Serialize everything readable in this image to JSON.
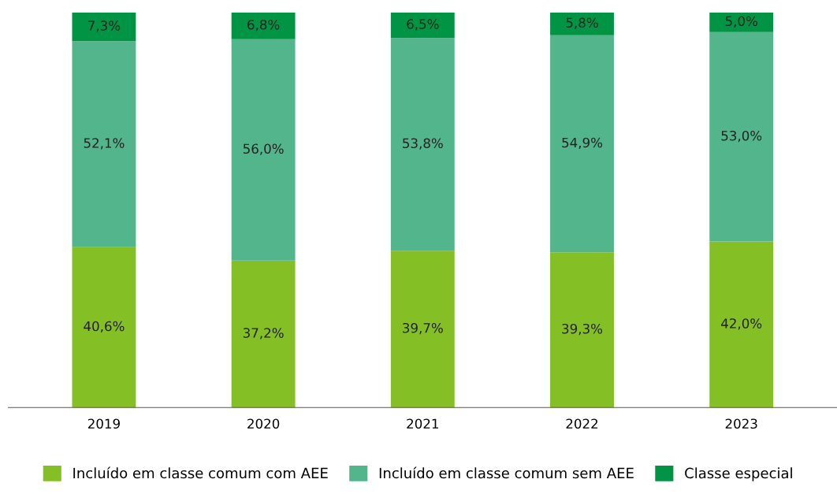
{
  "chart_data": {
    "type": "bar",
    "stacked": true,
    "categories": [
      "2019",
      "2020",
      "2021",
      "2022",
      "2023"
    ],
    "series": [
      {
        "name": "Incluído em classe comum com AEE",
        "color": "#84bf25",
        "values": [
          40.6,
          37.2,
          39.7,
          39.3,
          42.0
        ],
        "value_labels": [
          "40,6%",
          "37,2%",
          "39,7%",
          "39,3%",
          "42,0%"
        ]
      },
      {
        "name": "Incluído em classe comum sem AEE",
        "color": "#52b58c",
        "values": [
          52.1,
          56.0,
          53.8,
          54.9,
          53.0
        ],
        "value_labels": [
          "52,1%",
          "56,0%",
          "53,8%",
          "54,9%",
          "53,0%"
        ]
      },
      {
        "name": "Classe especial",
        "color": "#009444",
        "values": [
          7.3,
          6.8,
          6.5,
          5.8,
          5.0
        ],
        "value_labels": [
          "7,3%",
          "6,8%",
          "6,5%",
          "5,8%",
          "5,0%"
        ]
      }
    ],
    "legend": "bottom",
    "grid": false
  }
}
